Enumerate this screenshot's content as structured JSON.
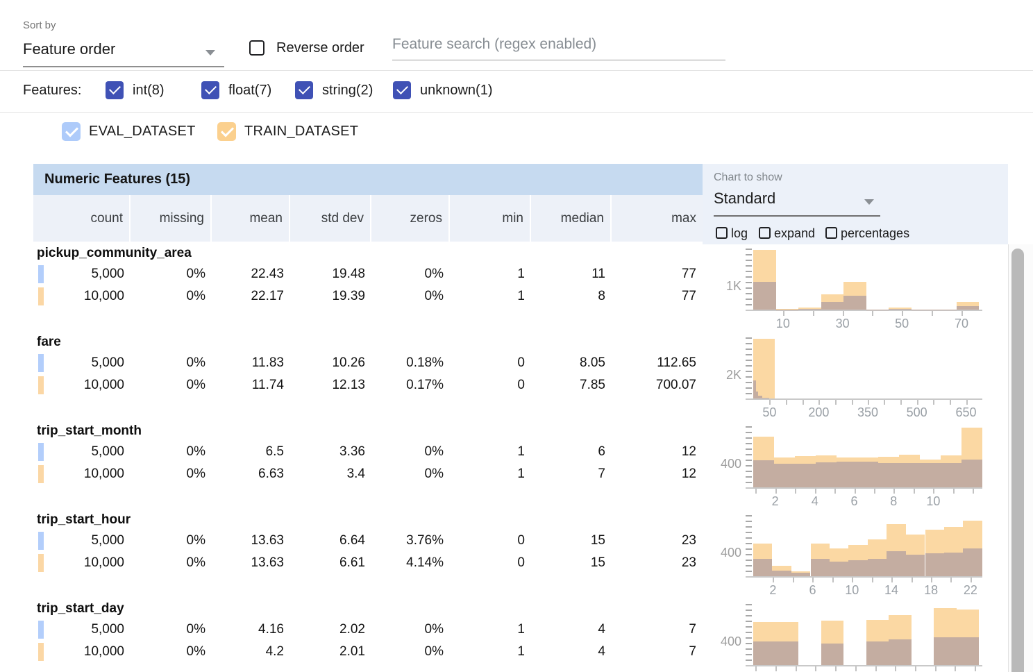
{
  "colors": {
    "indigo_checkbox": "#3f51b5",
    "eval_swatch": "#b3cefb",
    "train_swatch": "#fbd7a5",
    "train_bar": "#fbd8a3",
    "overlap_bar": "#c4ada1",
    "table_title_bg": "#c6daf0",
    "column_header_bg": "#edf1f8",
    "chart_panel_bg": "#ecf1f9"
  },
  "toolbar": {
    "sort_by_label": "Sort by",
    "sort_value": "Feature order",
    "reverse_label": "Reverse order",
    "search_placeholder": "Feature search (regex enabled)"
  },
  "features_filter": {
    "label": "Features:",
    "types": [
      {
        "label": "int(8)",
        "checked": true
      },
      {
        "label": "float(7)",
        "checked": true
      },
      {
        "label": "string(2)",
        "checked": true
      },
      {
        "label": "unknown(1)",
        "checked": true
      }
    ]
  },
  "datasets": [
    {
      "name": "EVAL_DATASET",
      "color": "#aecbfa",
      "checked": true
    },
    {
      "name": "TRAIN_DATASET",
      "color": "#fbd08e",
      "checked": true
    }
  ],
  "table": {
    "title": "Numeric Features (15)",
    "columns": [
      "count",
      "missing",
      "mean",
      "std dev",
      "zeros",
      "min",
      "median",
      "max"
    ],
    "rows": [
      {
        "name": "pickup_community_area",
        "eval": [
          "5,000",
          "0%",
          "22.43",
          "19.48",
          "0%",
          "1",
          "11",
          "77"
        ],
        "train": [
          "10,000",
          "0%",
          "22.17",
          "19.39",
          "0%",
          "1",
          "8",
          "77"
        ]
      },
      {
        "name": "fare",
        "eval": [
          "5,000",
          "0%",
          "11.83",
          "10.26",
          "0.18%",
          "0",
          "8.05",
          "112.65"
        ],
        "train": [
          "10,000",
          "0%",
          "11.74",
          "12.13",
          "0.17%",
          "0",
          "7.85",
          "700.07"
        ]
      },
      {
        "name": "trip_start_month",
        "eval": [
          "5,000",
          "0%",
          "6.5",
          "3.36",
          "0%",
          "1",
          "6",
          "12"
        ],
        "train": [
          "10,000",
          "0%",
          "6.63",
          "3.4",
          "0%",
          "1",
          "7",
          "12"
        ]
      },
      {
        "name": "trip_start_hour",
        "eval": [
          "5,000",
          "0%",
          "13.63",
          "6.64",
          "3.76%",
          "0",
          "15",
          "23"
        ],
        "train": [
          "10,000",
          "0%",
          "13.63",
          "6.61",
          "4.14%",
          "0",
          "15",
          "23"
        ]
      },
      {
        "name": "trip_start_day",
        "eval": [
          "5,000",
          "0%",
          "4.16",
          "2.02",
          "0%",
          "1",
          "4",
          "7"
        ],
        "train": [
          "10,000",
          "0%",
          "4.2",
          "2.01",
          "0%",
          "1",
          "4",
          "7"
        ]
      }
    ]
  },
  "chart_controls": {
    "label": "Chart to show",
    "value": "Standard",
    "options": [
      {
        "label": "log",
        "checked": false
      },
      {
        "label": "expand",
        "checked": false
      },
      {
        "label": "percentages",
        "checked": false
      }
    ]
  },
  "chart_data": [
    {
      "feature": "pickup_community_area",
      "type": "overlaid_histogram",
      "series": [
        "EVAL_DATASET",
        "TRAIN_DATASET"
      ],
      "note": "bars: x/w = fraction of x-axis, t = TRAIN height fraction of plot, o = EVAL/overlap height fraction",
      "y_axis_label": "1K",
      "x_range": [
        1,
        77
      ],
      "x_tick_labels": [
        {
          "text": "10",
          "f": 0.13
        },
        {
          "text": "30",
          "f": 0.39
        },
        {
          "text": "50",
          "f": 0.649
        },
        {
          "text": "70",
          "f": 0.909
        }
      ],
      "minor_ticks_f": [
        0.13,
        0.26,
        0.39,
        0.519,
        0.649,
        0.779,
        0.909
      ],
      "bars": [
        {
          "x": 0.0,
          "w": 0.0985,
          "t": 1.0,
          "o": 0.47
        },
        {
          "x": 0.0985,
          "w": 0.0985,
          "t": 0.012,
          "o": 0.004
        },
        {
          "x": 0.197,
          "w": 0.0985,
          "t": 0.03,
          "o": 0.01
        },
        {
          "x": 0.2955,
          "w": 0.0985,
          "t": 0.26,
          "o": 0.125
        },
        {
          "x": 0.394,
          "w": 0.0985,
          "t": 0.46,
          "o": 0.235
        },
        {
          "x": 0.4925,
          "w": 0.0985,
          "t": 0.005,
          "o": 0.002
        },
        {
          "x": 0.591,
          "w": 0.0985,
          "t": 0.03,
          "o": 0.01
        },
        {
          "x": 0.6895,
          "w": 0.0985,
          "t": 0.005,
          "o": 0.002
        },
        {
          "x": 0.788,
          "w": 0.0985,
          "t": 0.004,
          "o": 0.001
        },
        {
          "x": 0.8865,
          "w": 0.0985,
          "t": 0.125,
          "o": 0.055
        }
      ]
    },
    {
      "feature": "fare",
      "type": "overlaid_histogram",
      "series": [
        "EVAL_DATASET",
        "TRAIN_DATASET"
      ],
      "y_axis_label": "2K",
      "x_range": [
        0,
        700
      ],
      "x_tick_labels": [
        {
          "text": "50",
          "f": 0.071
        },
        {
          "text": "200",
          "f": 0.286
        },
        {
          "text": "350",
          "f": 0.5
        },
        {
          "text": "500",
          "f": 0.714
        },
        {
          "text": "650",
          "f": 0.929
        }
      ],
      "minor_ticks_f": [
        0.071,
        0.143,
        0.214,
        0.286,
        0.357,
        0.429,
        0.5,
        0.571,
        0.643,
        0.714,
        0.786,
        0.857,
        0.929
      ],
      "bars": [
        {
          "x": 0.0,
          "w": 0.095,
          "t": 1.0,
          "o": 0.0
        },
        {
          "x": 0.0,
          "w": 0.012,
          "t": 0.0,
          "o": 0.3
        },
        {
          "x": 0.012,
          "w": 0.01,
          "t": 0.0,
          "o": 0.12
        },
        {
          "x": 0.022,
          "w": 0.018,
          "t": 0.0,
          "o": 0.045
        },
        {
          "x": 0.04,
          "w": 0.03,
          "t": 0.0,
          "o": 0.012
        }
      ]
    },
    {
      "feature": "trip_start_month",
      "type": "overlaid_histogram",
      "series": [
        "EVAL_DATASET",
        "TRAIN_DATASET"
      ],
      "y_axis_label": "400",
      "x_range": [
        1,
        12
      ],
      "x_tick_labels": [
        {
          "text": "2",
          "f": 0.096
        },
        {
          "text": "4",
          "f": 0.269
        },
        {
          "text": "6",
          "f": 0.441
        },
        {
          "text": "8",
          "f": 0.613
        },
        {
          "text": "10",
          "f": 0.786
        }
      ],
      "minor_ticks_f": [
        0.01,
        0.096,
        0.182,
        0.269,
        0.355,
        0.441,
        0.527,
        0.613,
        0.7,
        0.786,
        0.872,
        0.958
      ],
      "bars": [
        {
          "x": 0.0,
          "w": 0.0909,
          "t": 0.85,
          "o": 0.45
        },
        {
          "x": 0.0909,
          "w": 0.0909,
          "t": 0.5,
          "o": 0.4
        },
        {
          "x": 0.1818,
          "w": 0.0909,
          "t": 0.52,
          "o": 0.4
        },
        {
          "x": 0.2727,
          "w": 0.0909,
          "t": 0.53,
          "o": 0.42
        },
        {
          "x": 0.3636,
          "w": 0.0909,
          "t": 0.5,
          "o": 0.43
        },
        {
          "x": 0.4545,
          "w": 0.0909,
          "t": 0.5,
          "o": 0.43
        },
        {
          "x": 0.5454,
          "w": 0.0909,
          "t": 0.51,
          "o": 0.41
        },
        {
          "x": 0.6363,
          "w": 0.0909,
          "t": 0.55,
          "o": 0.41
        },
        {
          "x": 0.7272,
          "w": 0.0909,
          "t": 0.47,
          "o": 0.41
        },
        {
          "x": 0.8181,
          "w": 0.0909,
          "t": 0.53,
          "o": 0.41
        },
        {
          "x": 0.909,
          "w": 0.0909,
          "t": 1.0,
          "o": 0.46
        }
      ]
    },
    {
      "feature": "trip_start_hour",
      "type": "overlaid_histogram",
      "series": [
        "EVAL_DATASET",
        "TRAIN_DATASET"
      ],
      "y_axis_label": "400",
      "x_range": [
        0,
        23
      ],
      "x_tick_labels": [
        {
          "text": "2",
          "f": 0.086
        },
        {
          "text": "6",
          "f": 0.259
        },
        {
          "text": "10",
          "f": 0.431
        },
        {
          "text": "14",
          "f": 0.603
        },
        {
          "text": "18",
          "f": 0.776
        },
        {
          "text": "22",
          "f": 0.948
        }
      ],
      "minor_ticks_f": [
        0.086,
        0.172,
        0.259,
        0.345,
        0.431,
        0.517,
        0.603,
        0.69,
        0.776,
        0.862,
        0.948
      ],
      "bars": [
        {
          "x": 0.0,
          "w": 0.0833,
          "t": 0.55,
          "o": 0.29
        },
        {
          "x": 0.0833,
          "w": 0.0833,
          "t": 0.17,
          "o": 0.09
        },
        {
          "x": 0.1666,
          "w": 0.0833,
          "t": 0.08,
          "o": 0.055
        },
        {
          "x": 0.25,
          "w": 0.0833,
          "t": 0.55,
          "o": 0.29
        },
        {
          "x": 0.3333,
          "w": 0.0833,
          "t": 0.47,
          "o": 0.245
        },
        {
          "x": 0.4166,
          "w": 0.0833,
          "t": 0.52,
          "o": 0.27
        },
        {
          "x": 0.5,
          "w": 0.0833,
          "t": 0.62,
          "o": 0.29
        },
        {
          "x": 0.5833,
          "w": 0.0833,
          "t": 0.87,
          "o": 0.42
        },
        {
          "x": 0.6666,
          "w": 0.0833,
          "t": 0.7,
          "o": 0.36
        },
        {
          "x": 0.75,
          "w": 0.0833,
          "t": 0.78,
          "o": 0.38
        },
        {
          "x": 0.8333,
          "w": 0.0833,
          "t": 0.82,
          "o": 0.4
        },
        {
          "x": 0.9166,
          "w": 0.0833,
          "t": 0.93,
          "o": 0.46
        }
      ]
    },
    {
      "feature": "trip_start_day",
      "type": "overlaid_histogram",
      "series": [
        "EVAL_DATASET",
        "TRAIN_DATASET"
      ],
      "y_axis_label": "400",
      "x_range": [
        1,
        7
      ],
      "x_tick_labels": [],
      "minor_ticks_f": [
        0.01,
        0.097,
        0.184,
        0.271,
        0.358,
        0.445,
        0.532,
        0.619,
        0.706,
        0.793,
        0.88,
        0.967
      ],
      "bars": [
        {
          "x": 0.0,
          "w": 0.0985,
          "t": 0.72,
          "o": 0.4
        },
        {
          "x": 0.0985,
          "w": 0.0985,
          "t": 0.72,
          "o": 0.39
        },
        {
          "x": 0.197,
          "w": 0.0985,
          "t": 0.0,
          "o": 0.0
        },
        {
          "x": 0.2955,
          "w": 0.0985,
          "t": 0.75,
          "o": 0.36
        },
        {
          "x": 0.394,
          "w": 0.0985,
          "t": 0.0,
          "o": 0.0
        },
        {
          "x": 0.4925,
          "w": 0.0985,
          "t": 0.76,
          "o": 0.4
        },
        {
          "x": 0.591,
          "w": 0.0985,
          "t": 0.84,
          "o": 0.43
        },
        {
          "x": 0.6895,
          "w": 0.0985,
          "t": 0.0,
          "o": 0.0
        },
        {
          "x": 0.788,
          "w": 0.0985,
          "t": 0.95,
          "o": 0.47
        },
        {
          "x": 0.8865,
          "w": 0.0985,
          "t": 0.93,
          "o": 0.46
        }
      ]
    }
  ]
}
